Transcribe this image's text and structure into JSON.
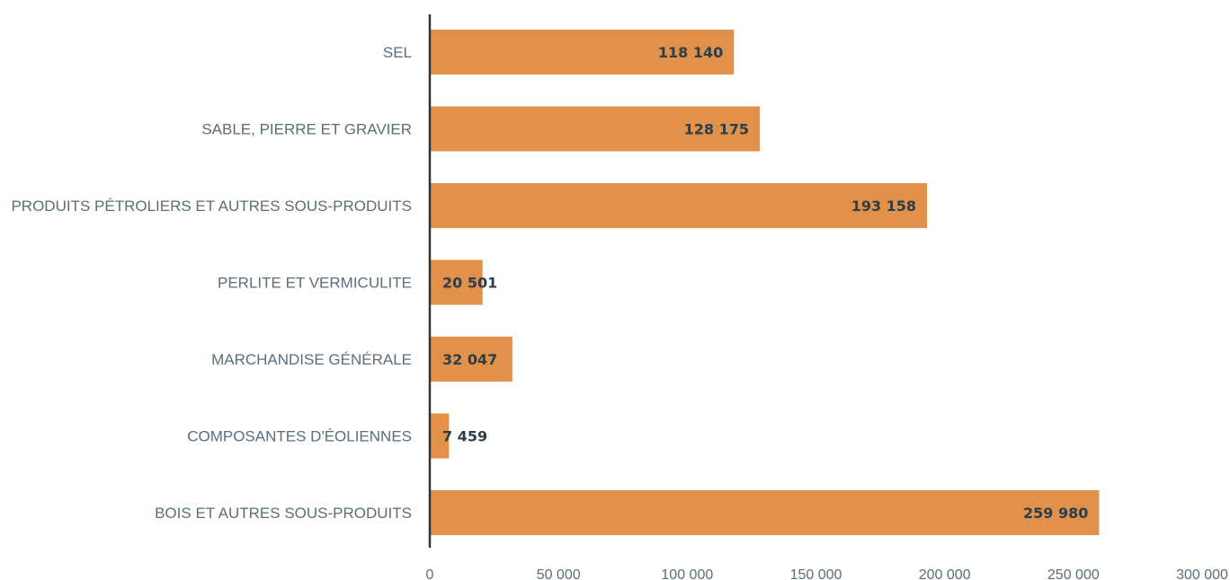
{
  "chart_data": {
    "type": "bar",
    "orientation": "horizontal",
    "categories": [
      "SEL",
      "SABLE, PIERRE ET GRAVIER",
      "PRODUITS PÉTROLIERS ET AUTRES SOUS-PRODUITS",
      "PERLITE ET VERMICULITE",
      "MARCHANDISE GÉNÉRALE",
      "COMPOSANTES D'ÉOLIENNES",
      "BOIS ET AUTRES SOUS-PRODUITS"
    ],
    "values": [
      118140,
      128175,
      193158,
      20501,
      32047,
      7459,
      259980
    ],
    "data_labels": [
      "118 140",
      "128 175",
      "193 158",
      "20 501",
      "32 047",
      "7 459",
      "259 980"
    ],
    "xlim": [
      0,
      300000
    ],
    "xticks": [
      0,
      50000,
      100000,
      150000,
      200000,
      250000,
      300000
    ],
    "xtick_labels": [
      "0",
      "50 000",
      "100 000",
      "150 000",
      "200 000",
      "250 000",
      "300 000"
    ],
    "title": "",
    "xlabel": "",
    "ylabel": "",
    "grid": false,
    "legend": "none",
    "colors": {
      "bar": "#E2914A",
      "axis": "#333333",
      "category_text": "#5a6e7a",
      "value_text": "#2c3e4a"
    }
  }
}
